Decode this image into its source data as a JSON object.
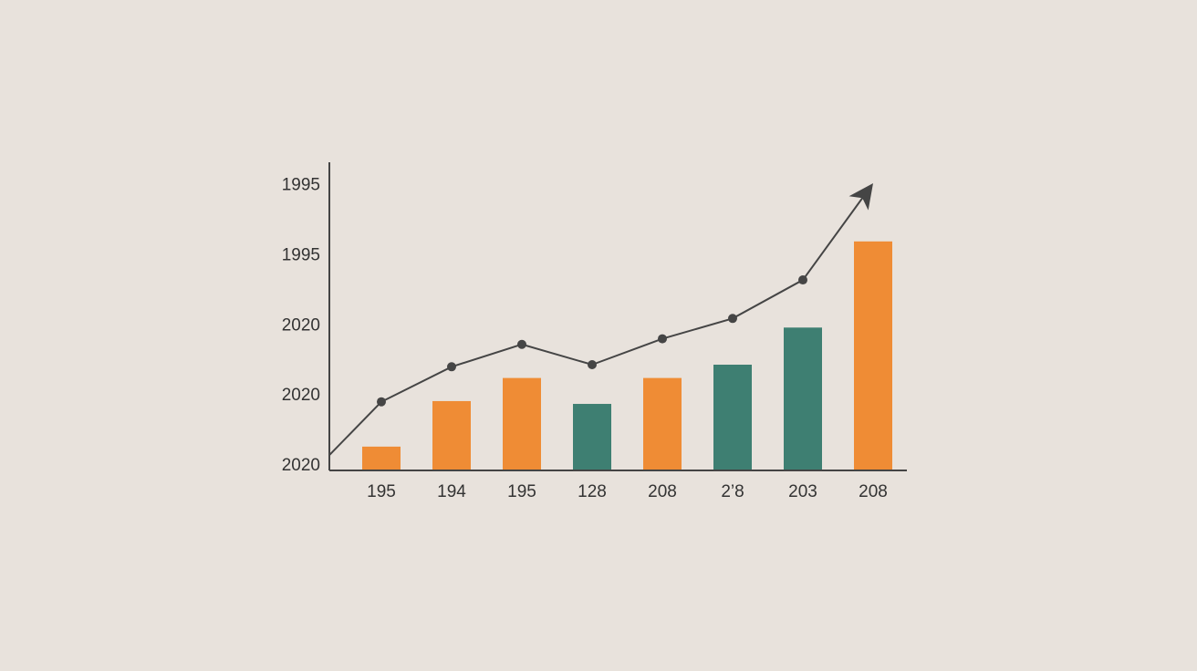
{
  "chart_data": {
    "type": "bar",
    "categories": [
      "195",
      "194",
      "195",
      "128",
      "208",
      "2’8",
      "203",
      "208"
    ],
    "values": [
      0.34,
      0.99,
      1.32,
      0.95,
      1.32,
      1.51,
      2.04,
      3.27
    ],
    "colors": [
      "#ef8c35",
      "#ef8c35",
      "#ef8c35",
      "#3e7f72",
      "#ef8c35",
      "#3e7f72",
      "#3e7f72",
      "#ef8c35"
    ],
    "line_values": [
      0.98,
      1.48,
      1.8,
      1.51,
      1.88,
      2.17,
      2.72,
      4.1
    ],
    "line_color": "#454545",
    "ylim": [
      0,
      4.4
    ],
    "yticks": [
      {
        "value": 0,
        "label": "2020"
      },
      {
        "value": 1,
        "label": "2020"
      },
      {
        "value": 2,
        "label": "2020"
      },
      {
        "value": 3,
        "label": "1995"
      },
      {
        "value": 4,
        "label": "1995"
      }
    ],
    "grid": false
  }
}
